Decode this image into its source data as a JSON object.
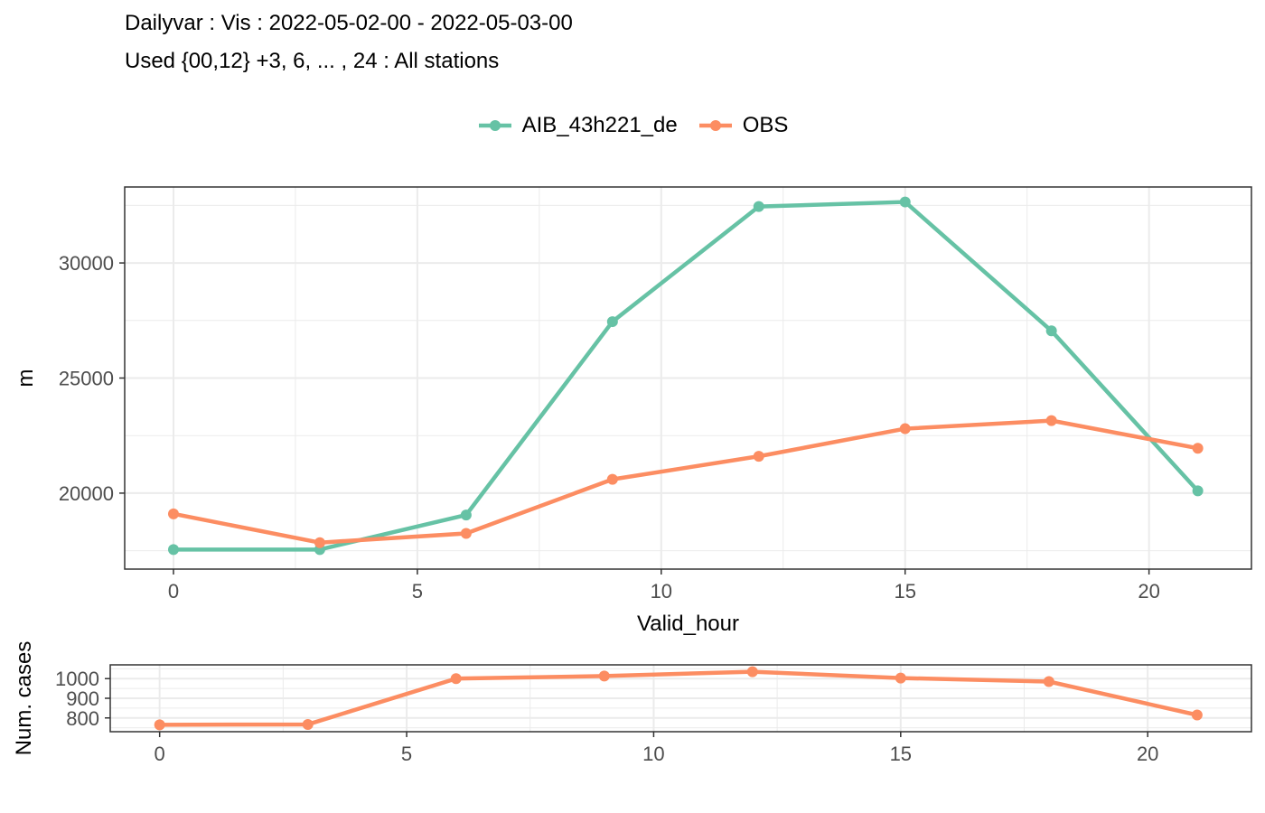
{
  "title": "Dailyvar : Vis : 2022-05-02-00 - 2022-05-03-00",
  "subtitle": "Used {00,12} +3, 6, ... , 24 : All stations",
  "legend": [
    {
      "name": "AIB_43h221_de",
      "color": "#66c2a5"
    },
    {
      "name": "OBS",
      "color": "#fc8d62"
    }
  ],
  "chart_data": [
    {
      "type": "line",
      "xlabel": "Valid_hour",
      "ylabel": "m",
      "xlim": [
        -1,
        22.1
      ],
      "ylim": [
        16700,
        33300
      ],
      "xticks": [
        0,
        5,
        10,
        15,
        20
      ],
      "xtick_labels": [
        "0",
        "5",
        "10",
        "15",
        "20"
      ],
      "yticks": [
        20000,
        25000,
        30000
      ],
      "ytick_labels": [
        "20000",
        "25000",
        "30000"
      ],
      "grid": true,
      "legend_position": "top",
      "x": [
        0,
        3,
        6,
        9,
        12,
        15,
        18,
        21
      ],
      "series": [
        {
          "name": "AIB_43h221_de",
          "color": "#66c2a5",
          "values": [
            17550,
            17550,
            19050,
            27450,
            32450,
            32650,
            27050,
            20100
          ]
        },
        {
          "name": "OBS",
          "color": "#fc8d62",
          "values": [
            19100,
            17850,
            18250,
            20600,
            21600,
            22800,
            23150,
            21950
          ]
        }
      ]
    },
    {
      "type": "line",
      "xlabel": "",
      "ylabel": "Num. cases",
      "xlim": [
        -1,
        22.1
      ],
      "ylim": [
        730,
        1070
      ],
      "xticks": [
        0,
        5,
        10,
        15,
        20
      ],
      "xtick_labels": [
        "0",
        "5",
        "10",
        "15",
        "20"
      ],
      "yticks": [
        800,
        900,
        1000
      ],
      "ytick_labels": [
        "800",
        "900",
        "1000"
      ],
      "grid": true,
      "x": [
        0,
        3,
        6,
        9,
        12,
        15,
        18,
        21
      ],
      "series": [
        {
          "color": "#fc8d62",
          "values": [
            765,
            767,
            1000,
            1013,
            1035,
            1003,
            985,
            815
          ]
        }
      ]
    }
  ]
}
